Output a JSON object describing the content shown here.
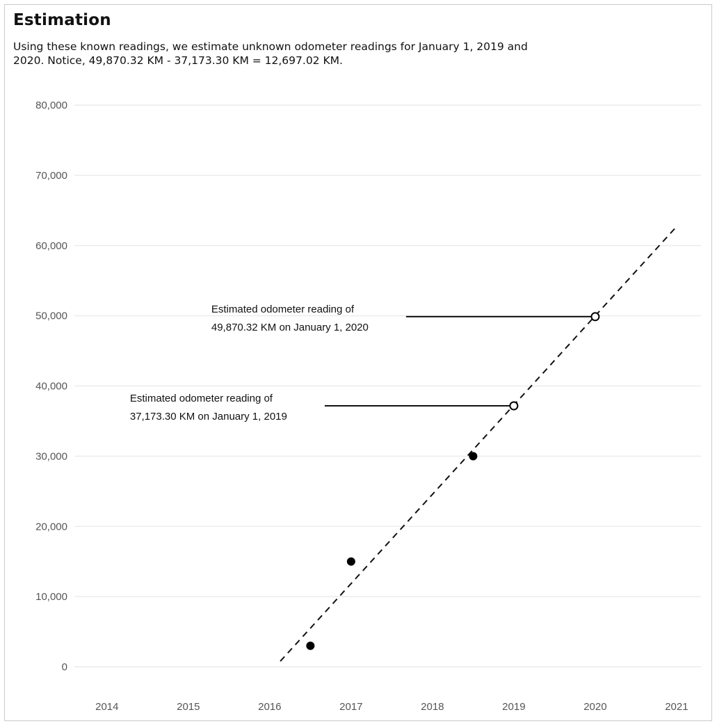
{
  "header": {
    "title": "Estimation",
    "subtitle": "Using these known readings, we estimate unknown odometer readings for January 1, 2019 and 2020. Notice, 49,870.32 KM - 37,173.30 KM = 12,697.02 KM."
  },
  "chart_data": {
    "type": "scatter",
    "title": "Estimation",
    "xlabel": "",
    "ylabel": "",
    "xlim": [
      2013.6,
      2021.3
    ],
    "ylim": [
      0,
      80000
    ],
    "grid": true,
    "x_ticks": [
      "2014",
      "2015",
      "2016",
      "2017",
      "2018",
      "2019",
      "2020",
      "2021"
    ],
    "y_ticks": [
      "0",
      "10,000",
      "20,000",
      "30,000",
      "40,000",
      "50,000",
      "60,000",
      "70,000",
      "80,000"
    ],
    "known_readings": [
      {
        "x": 2016.5,
        "y": 3000
      },
      {
        "x": 2017.0,
        "y": 15000
      },
      {
        "x": 2018.5,
        "y": 30000
      }
    ],
    "estimated_readings": [
      {
        "x": 2019.0,
        "y": 37173.3
      },
      {
        "x": 2020.0,
        "y": 49870.32
      }
    ],
    "trend_line": {
      "x": [
        2016.13,
        2021.0
      ],
      "y": [
        800,
        62700
      ],
      "style": "dashed"
    },
    "annotations": [
      {
        "line1": "Estimated odometer reading of",
        "line2": "37,173.30 KM on January 1, 2019",
        "x": 2019.0,
        "y": 37173.3
      },
      {
        "line1": "Estimated odometer reading of",
        "line2": "49,870.32 KM on January 1, 2020",
        "x": 2020.0,
        "y": 49870.32
      }
    ],
    "colors": {
      "grid": "#ececec",
      "axis_text": "#555555",
      "marker": "#000000"
    }
  }
}
